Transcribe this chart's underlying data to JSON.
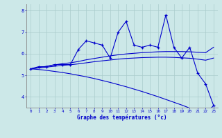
{
  "xlabel": "Graphe des températures (°c)",
  "hours": [
    0,
    1,
    2,
    3,
    4,
    5,
    6,
    7,
    8,
    9,
    10,
    11,
    12,
    13,
    14,
    15,
    16,
    17,
    18,
    19,
    20,
    21,
    22,
    23
  ],
  "temp_line": [
    5.3,
    5.4,
    5.4,
    5.5,
    5.5,
    5.5,
    6.2,
    6.6,
    6.5,
    6.4,
    5.8,
    7.0,
    7.5,
    6.4,
    6.3,
    6.4,
    6.3,
    7.8,
    6.3,
    5.8,
    6.3,
    5.1,
    4.6,
    3.6
  ],
  "smooth_high": [
    5.3,
    5.36,
    5.42,
    5.48,
    5.54,
    5.58,
    5.64,
    5.72,
    5.78,
    5.84,
    5.9,
    5.95,
    5.99,
    6.02,
    6.05,
    6.07,
    6.09,
    6.1,
    6.1,
    6.1,
    6.09,
    6.07,
    6.05,
    6.3
  ],
  "smooth_mid": [
    5.3,
    5.34,
    5.38,
    5.42,
    5.46,
    5.49,
    5.53,
    5.58,
    5.63,
    5.67,
    5.71,
    5.75,
    5.78,
    5.8,
    5.82,
    5.83,
    5.84,
    5.84,
    5.83,
    5.81,
    5.79,
    5.75,
    5.7,
    5.8
  ],
  "line_down": [
    5.3,
    5.27,
    5.23,
    5.18,
    5.13,
    5.07,
    5.0,
    4.93,
    4.85,
    4.76,
    4.67,
    4.57,
    4.47,
    4.36,
    4.25,
    4.13,
    4.01,
    3.88,
    3.75,
    3.62,
    3.48,
    3.34,
    3.2,
    3.6
  ],
  "bg_color": "#cce8e8",
  "line_color": "#0000cc",
  "grid_color": "#aacccc",
  "ylim": [
    3.5,
    8.3
  ],
  "xlim": [
    -0.5,
    23.5
  ],
  "yticks": [
    4,
    5,
    6,
    7,
    8
  ]
}
